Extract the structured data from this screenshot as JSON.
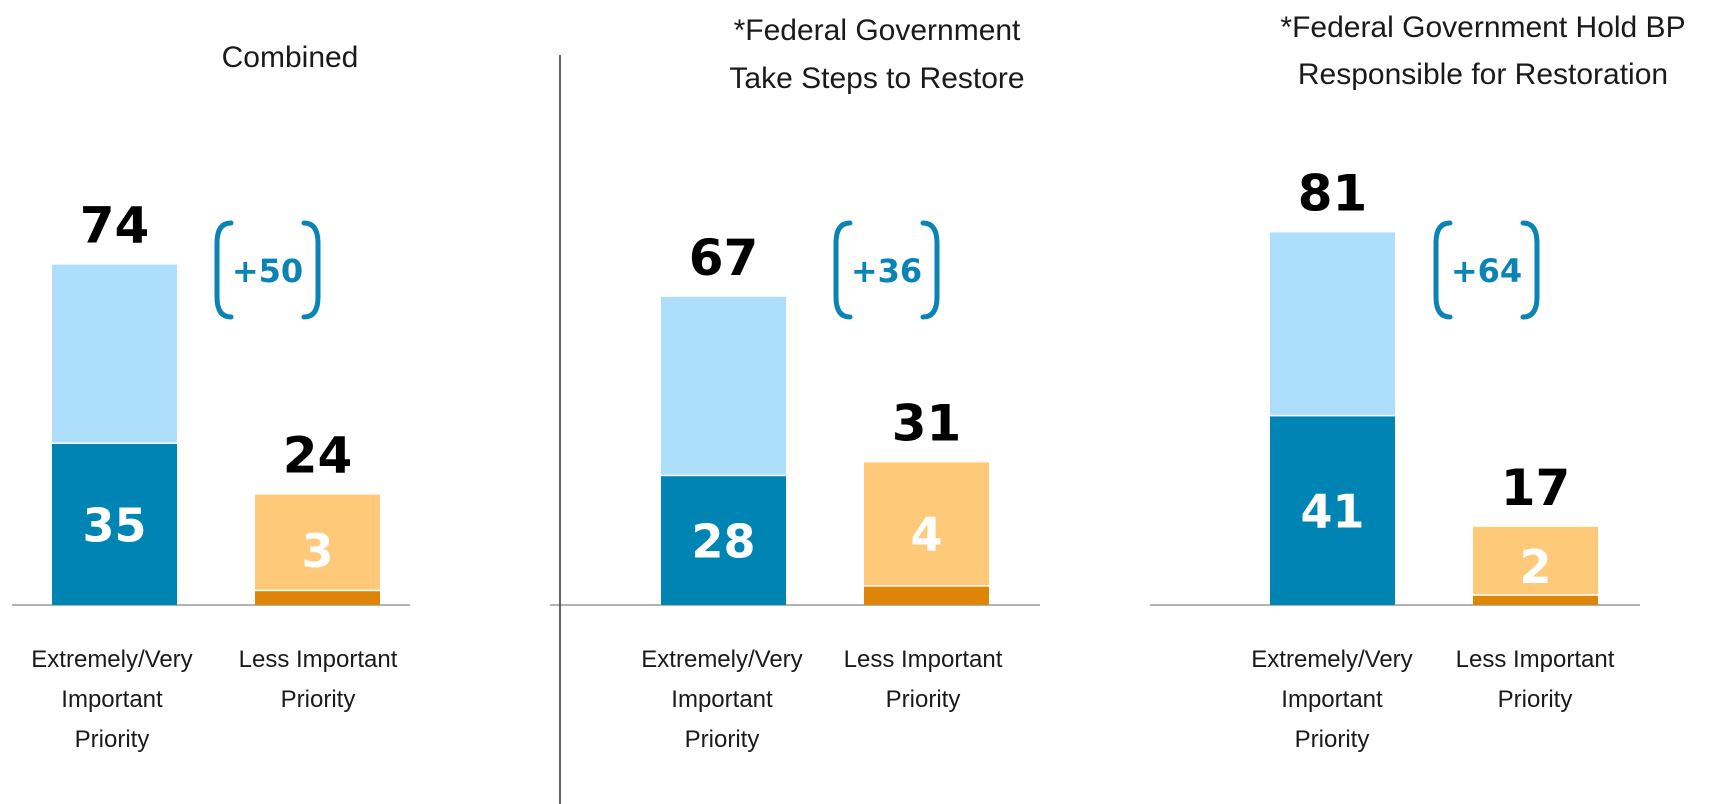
{
  "chart_data": [
    {
      "type": "bar",
      "stacked": true,
      "title": [
        "Combined"
      ],
      "categories": [
        [
          "Extremely/Very",
          "Important",
          "Priority"
        ],
        [
          "Less Important",
          "Priority"
        ]
      ],
      "totals": [
        74,
        24
      ],
      "inner_values": [
        35,
        3
      ],
      "margin_label": "+50",
      "ylim": [
        0,
        100
      ]
    },
    {
      "type": "bar",
      "stacked": true,
      "title": [
        "*Federal Government",
        "Take Steps to Restore"
      ],
      "categories": [
        [
          "Extremely/Very",
          "Important",
          "Priority"
        ],
        [
          "Less Important",
          "Priority"
        ]
      ],
      "totals": [
        67,
        31
      ],
      "inner_values": [
        28,
        4
      ],
      "margin_label": "+36",
      "ylim": [
        0,
        100
      ]
    },
    {
      "type": "bar",
      "stacked": true,
      "title": [
        "*Federal Government Hold BP",
        "Responsible for Restoration"
      ],
      "categories": [
        [
          "Extremely/Very",
          "Important",
          "Priority"
        ],
        [
          "Less Important",
          "Priority"
        ]
      ],
      "totals": [
        81,
        17
      ],
      "inner_values": [
        41,
        2
      ],
      "margin_label": "+64",
      "ylim": [
        0,
        100
      ]
    }
  ],
  "colors": {
    "important_dark": "#0084B4",
    "important_light": "#ADDEFB",
    "less_dark": "#DE8508",
    "less_light": "#FFC97A",
    "bracket": "#0A84B4"
  }
}
